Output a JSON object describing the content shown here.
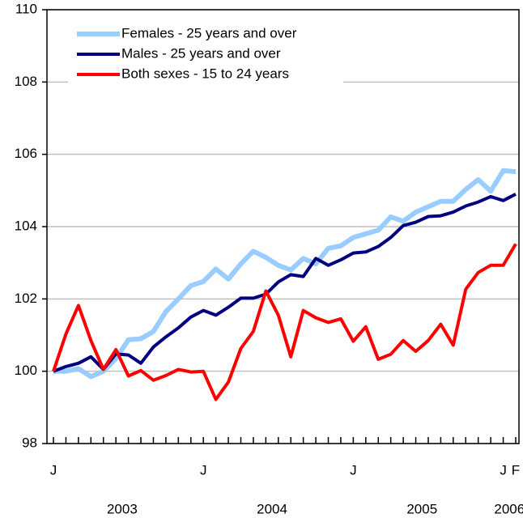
{
  "chart_data": {
    "type": "line",
    "categories": [
      "J",
      null,
      null,
      null,
      null,
      null,
      null,
      null,
      null,
      null,
      null,
      null,
      "J",
      null,
      null,
      null,
      null,
      null,
      null,
      null,
      null,
      null,
      null,
      null,
      "J",
      null,
      null,
      null,
      null,
      null,
      null,
      null,
      null,
      null,
      null,
      null,
      "J",
      "F"
    ],
    "years": [
      "2003",
      "2004",
      "2005",
      "2006"
    ],
    "series": [
      {
        "name": "Females - 25 years and over",
        "color": "#99ccff",
        "values": [
          100,
          100.0,
          100.07,
          99.85,
          100.0,
          100.35,
          100.87,
          100.9,
          101.1,
          101.65,
          102.0,
          102.37,
          102.48,
          102.83,
          102.55,
          102.97,
          103.32,
          103.15,
          102.93,
          102.8,
          103.12,
          102.97,
          103.4,
          103.47,
          103.7,
          103.8,
          103.9,
          104.27,
          104.15,
          104.4,
          104.55,
          104.7,
          104.7,
          105.03,
          105.3,
          104.98,
          105.55,
          105.52
        ]
      },
      {
        "name": "Males - 25 years and over",
        "color": "#000080",
        "values": [
          100,
          100.13,
          100.22,
          100.4,
          100.05,
          100.48,
          100.45,
          100.22,
          100.67,
          100.95,
          101.2,
          101.5,
          101.68,
          101.55,
          101.77,
          102.02,
          102.02,
          102.13,
          102.47,
          102.67,
          102.62,
          103.12,
          102.93,
          103.08,
          103.27,
          103.3,
          103.45,
          103.7,
          104.03,
          104.12,
          104.28,
          104.3,
          104.4,
          104.57,
          104.68,
          104.83,
          104.72,
          104.9
        ]
      },
      {
        "name": "Both sexes - 15 to 24 years",
        "color": "#ff0000",
        "values": [
          100,
          101.03,
          101.82,
          100.85,
          100.05,
          100.6,
          99.87,
          100.02,
          99.75,
          99.88,
          100.05,
          99.98,
          100.0,
          99.22,
          99.7,
          100.63,
          101.1,
          102.22,
          101.55,
          100.4,
          101.68,
          101.48,
          101.35,
          101.45,
          100.83,
          101.23,
          100.33,
          100.47,
          100.85,
          100.55,
          100.85,
          101.3,
          100.72,
          102.27,
          102.73,
          102.93,
          102.93,
          103.52
        ]
      }
    ],
    "ylim": [
      98,
      110
    ],
    "yticks": [
      98,
      100,
      102,
      104,
      106,
      108,
      110
    ],
    "grid": true,
    "legend": "top-left"
  }
}
